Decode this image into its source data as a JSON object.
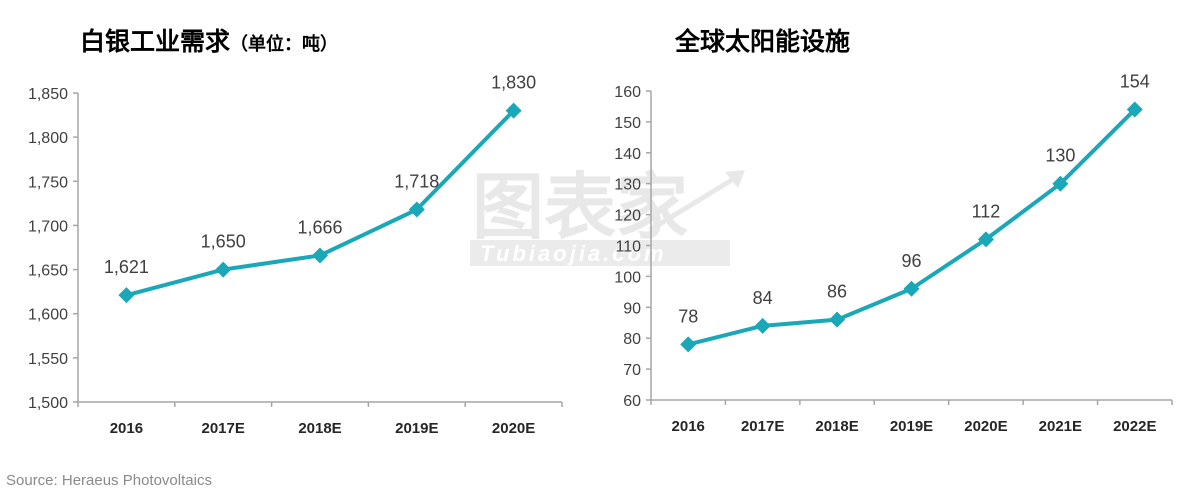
{
  "charts": {
    "left": {
      "title": "白银工业需求",
      "unit": "（单位：吨）"
    },
    "right": {
      "title": "全球太阳能设施"
    }
  },
  "watermark": {
    "cn": "图表家",
    "en": "Tubiaojia.com"
  },
  "source": "Source: Heraeus Photovoltaics",
  "colors": {
    "line": "#1aa7b8",
    "axis": "#a6a6a6",
    "text": "#404040",
    "watermark": "#e6e6e6"
  },
  "chart_data": [
    {
      "type": "line",
      "title": "白银工业需求（单位：吨）",
      "xlabel": "",
      "ylabel": "",
      "categories": [
        "2016",
        "2017E",
        "2018E",
        "2019E",
        "2020E"
      ],
      "values": [
        1621,
        1650,
        1666,
        1718,
        1830
      ],
      "data_labels": [
        "1,621",
        "1,650",
        "1,666",
        "1,718",
        "1,830"
      ],
      "ylim": [
        1500,
        1850
      ],
      "yticks": [
        "1,500",
        "1,550",
        "1,600",
        "1,650",
        "1,700",
        "1,750",
        "1,800",
        "1,850"
      ],
      "grid": false,
      "legend": null,
      "marker": "diamond"
    },
    {
      "type": "line",
      "title": "全球太阳能设施",
      "xlabel": "",
      "ylabel": "",
      "categories": [
        "2016",
        "2017E",
        "2018E",
        "2019E",
        "2020E",
        "2021E",
        "2022E"
      ],
      "values": [
        78,
        84,
        86,
        96,
        112,
        130,
        154
      ],
      "data_labels": [
        "78",
        "84",
        "86",
        "96",
        "112",
        "130",
        "154"
      ],
      "ylim": [
        60,
        160
      ],
      "yticks": [
        "60",
        "70",
        "80",
        "90",
        "100",
        "110",
        "120",
        "130",
        "140",
        "150",
        "160"
      ],
      "grid": false,
      "legend": null,
      "marker": "diamond"
    }
  ]
}
